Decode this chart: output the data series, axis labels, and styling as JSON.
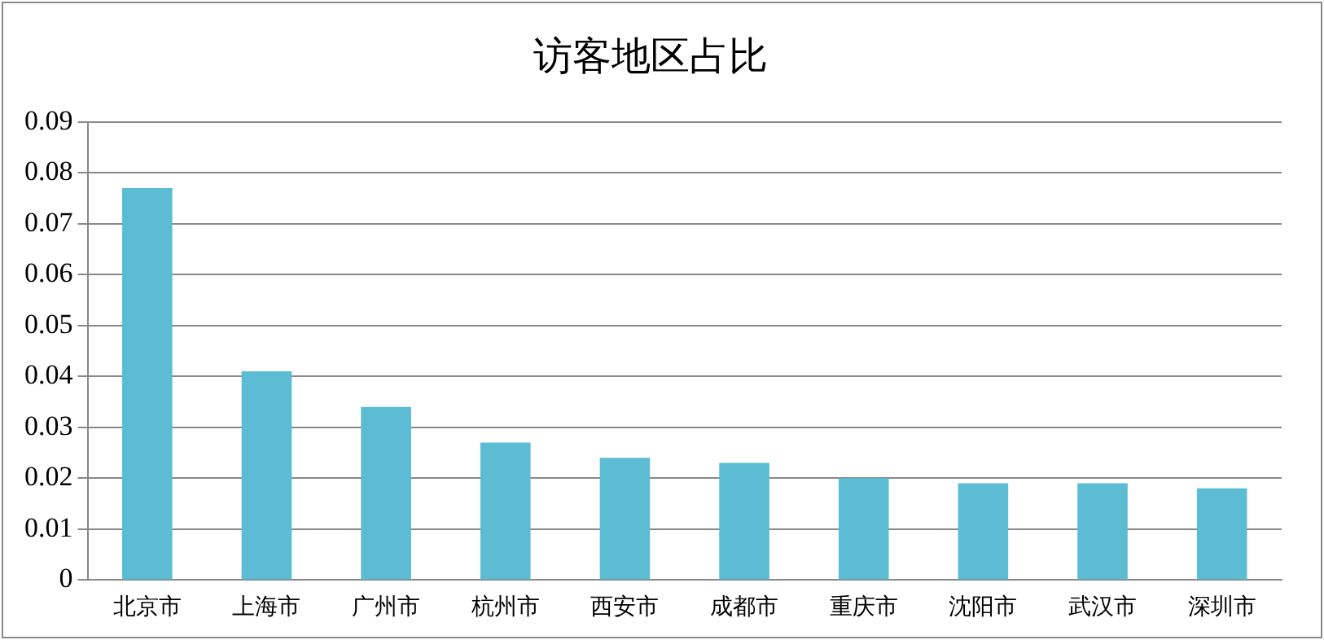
{
  "chart_data": {
    "type": "bar",
    "title": "访客地区占比",
    "categories": [
      "北京市",
      "上海市",
      "广州市",
      "杭州市",
      "西安市",
      "成都市",
      "重庆市",
      "沈阳市",
      "武汉市",
      "深圳市"
    ],
    "values": [
      0.077,
      0.041,
      0.034,
      0.027,
      0.024,
      0.023,
      0.02,
      0.019,
      0.019,
      0.018
    ],
    "color": "#5bbcd3",
    "ylim": [
      0,
      0.09
    ],
    "yticks": [
      0,
      0.01,
      0.02,
      0.03,
      0.04,
      0.05,
      0.06,
      0.07,
      0.08,
      0.09
    ],
    "grid": "y",
    "legend": false
  }
}
